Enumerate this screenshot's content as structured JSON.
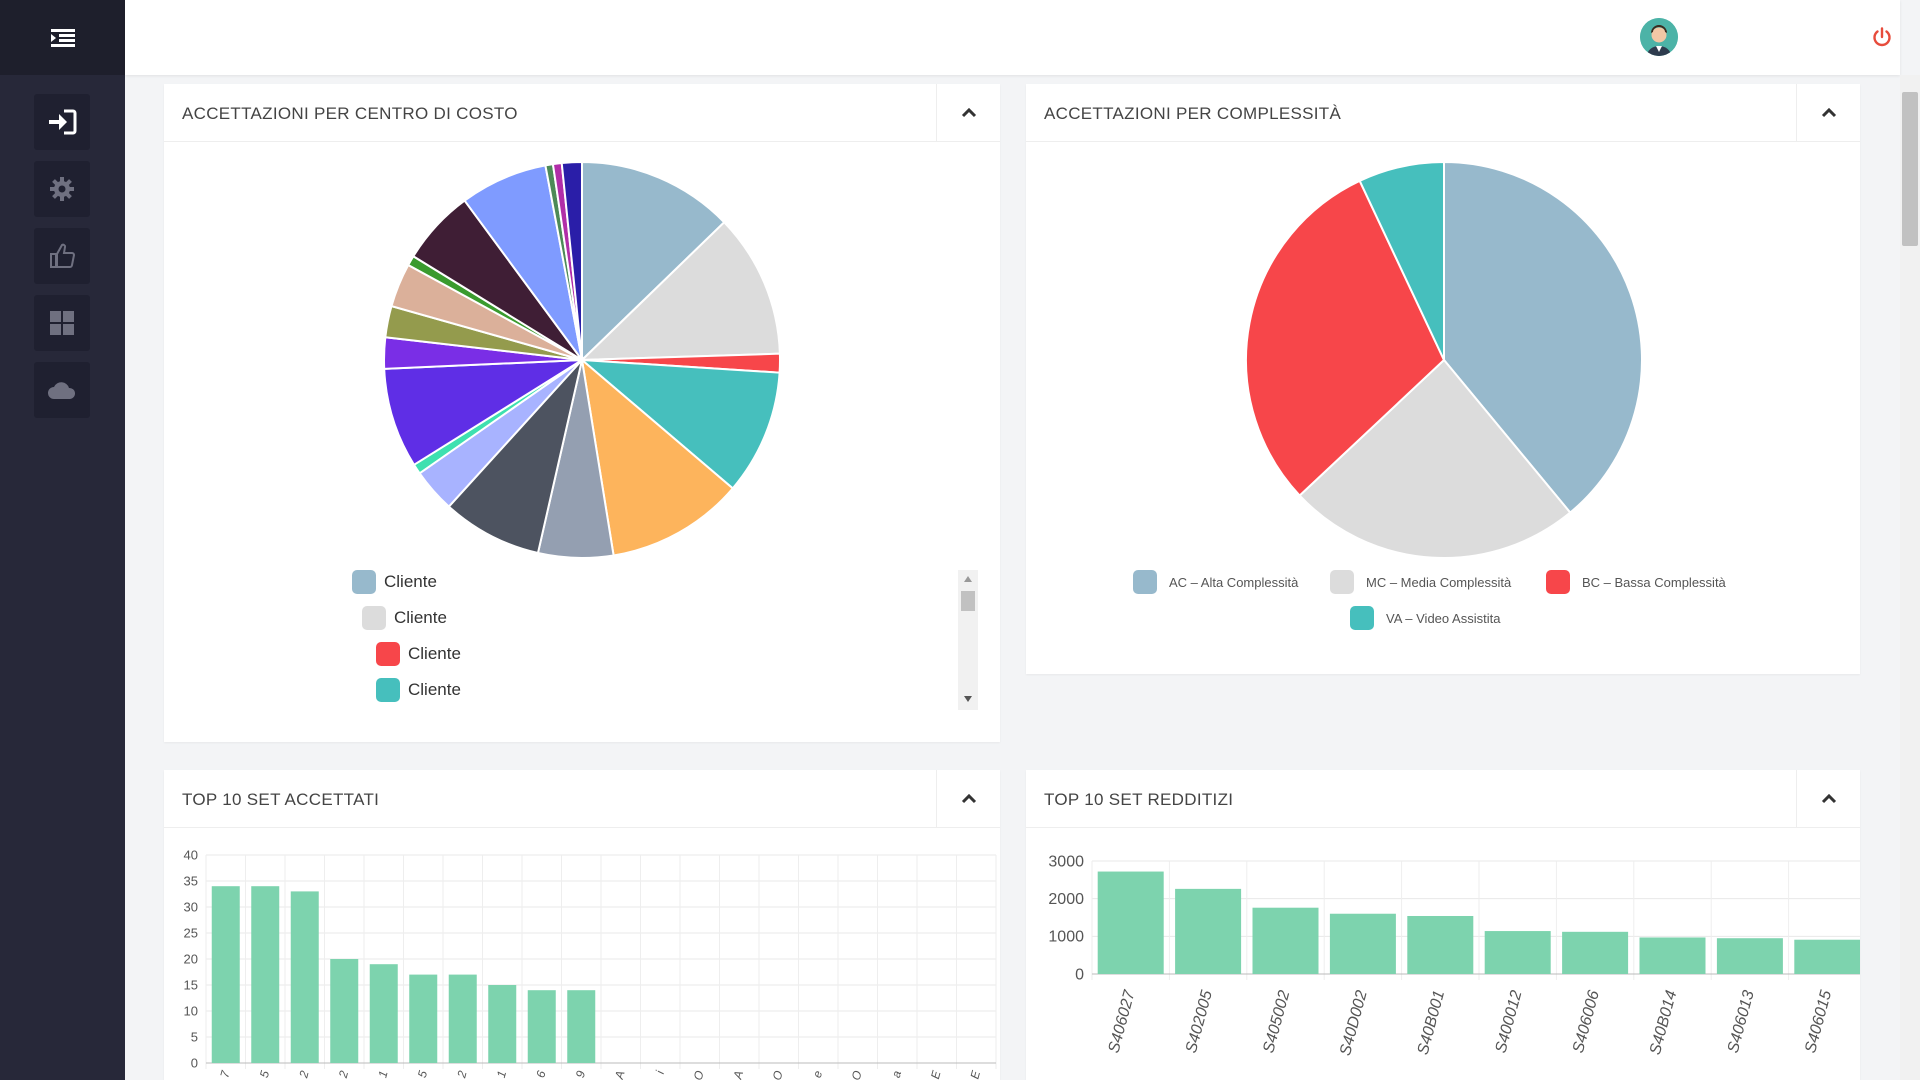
{
  "icons": {
    "menu": "menu-indent-icon",
    "login": "login-icon",
    "settings": "gear-icon",
    "like": "thumbs-up-icon",
    "dashboard": "grid-icon",
    "cloud": "cloud-icon",
    "power": "power-icon"
  },
  "colors": {
    "sidebar": "#272839",
    "accent_power": "#e74c3c",
    "bar": "#7dd3ae"
  },
  "panels": {
    "costo": {
      "title": "ACCETTAZIONI PER CENTRO DI COSTO"
    },
    "complessita": {
      "title": "ACCETTAZIONI PER COMPLESSITÀ"
    },
    "top_accettati": {
      "title": "TOP 10 SET ACCETTATI"
    },
    "top_redditizi": {
      "title": "TOP 10 SET REDDITIZI"
    }
  },
  "legend_costo": [
    {
      "label": "Cliente",
      "color": "#97b9cc"
    },
    {
      "label": "Cliente",
      "color": "#dcdcdc"
    },
    {
      "label": "Cliente",
      "color": "#f7464a"
    },
    {
      "label": "Cliente",
      "color": "#46bfbd"
    }
  ],
  "chart_data": [
    {
      "type": "pie",
      "title": "ACCETTAZIONI PER CENTRO DI COSTO",
      "values": [
        12.5,
        11.5,
        1.5,
        10,
        11,
        6,
        8,
        3.5,
        0.8,
        8,
        2.5,
        2.5,
        3.5,
        0.8,
        6,
        7,
        0.6,
        0.7,
        1.6
      ],
      "colors": [
        "#97b9cc",
        "#dcdcdc",
        "#f7464a",
        "#46bfbd",
        "#fdb45c",
        "#949fb1",
        "#4d5360",
        "#a8b3ff",
        "#3ee0b0",
        "#5f2ee6",
        "#7a2ee6",
        "#949b4d",
        "#dbb09a",
        "#3a9b2e",
        "#3f1e35",
        "#7f9bff",
        "#4d8a57",
        "#b12ea8",
        "#2a1ea8"
      ]
    },
    {
      "type": "pie",
      "title": "ACCETTAZIONI PER COMPLESSITÀ",
      "labels": [
        "AC – Alta Complessità",
        "MC – Media Complessità",
        "BC – Bassa Complessità",
        "VA – Video Assistita"
      ],
      "values": [
        39,
        24,
        30,
        7
      ],
      "colors": [
        "#97b9cc",
        "#dcdcdc",
        "#f7464a",
        "#46bfbd"
      ]
    },
    {
      "type": "bar",
      "title": "TOP 10 SET ACCETTATI",
      "categories": [
        "7",
        "5",
        "2",
        "2",
        "1",
        "5",
        "2",
        "1",
        "6",
        "9",
        "A",
        "i",
        "O",
        "A",
        "O",
        "e",
        "O",
        "a",
        "E",
        "E"
      ],
      "values": [
        34,
        34,
        33,
        20,
        19,
        17,
        17,
        15,
        14,
        14,
        0,
        0,
        0,
        0,
        0,
        0,
        0,
        0,
        0,
        0
      ],
      "ylim": [
        0,
        40
      ],
      "yticks": [
        "0",
        "5",
        "10",
        "15",
        "20",
        "25",
        "30",
        "35",
        "40"
      ]
    },
    {
      "type": "bar",
      "title": "TOP 10 SET REDDITIZI",
      "categories": [
        "S406027",
        "S402005",
        "S405002",
        "S40D002",
        "S40B001",
        "S400012",
        "S406006",
        "S40B014",
        "S406013",
        "S406015"
      ],
      "values": [
        2720,
        2260,
        1760,
        1600,
        1540,
        1140,
        1120,
        970,
        950,
        910
      ],
      "ylim": [
        0,
        3000
      ],
      "yticks": [
        "0",
        "1000",
        "2000",
        "3000"
      ]
    }
  ]
}
